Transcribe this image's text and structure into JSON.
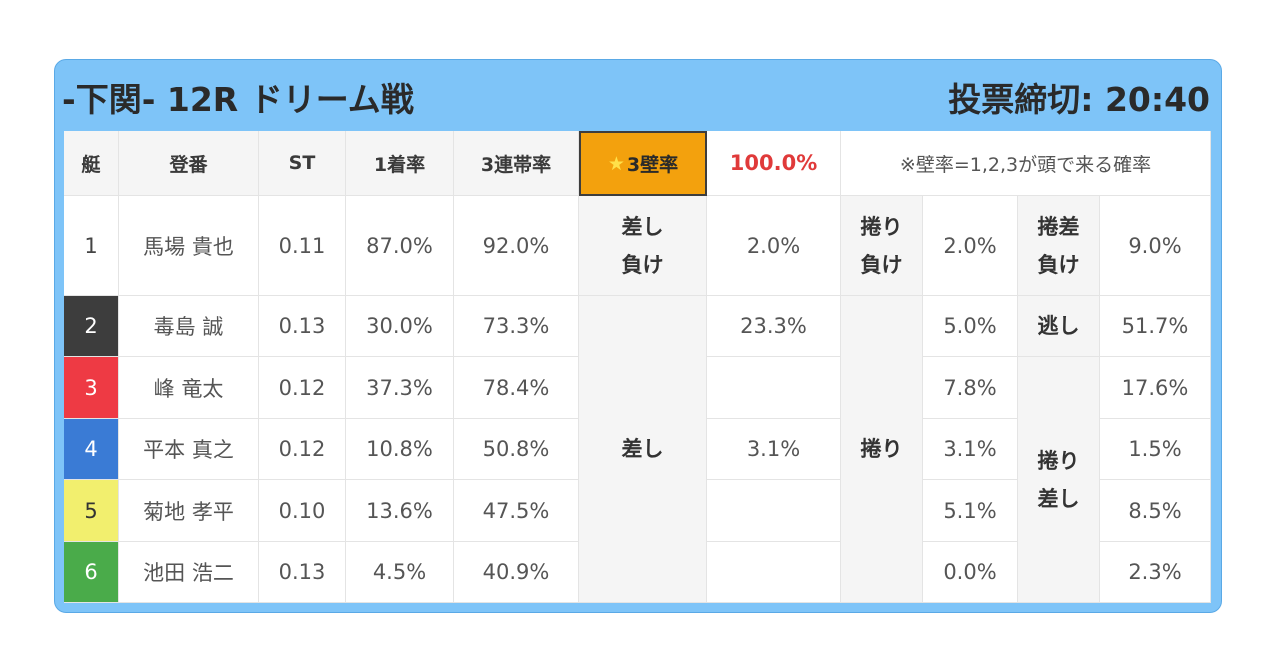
{
  "header": {
    "title": "-下関- 12R ドリーム戦",
    "deadline_label": "投票締切: ",
    "deadline_time": "20:40"
  },
  "columns": {
    "boat": "艇",
    "name": "登番",
    "st": "ST",
    "first_rate": "1着率",
    "trio_rate": "3連帯率",
    "star": "★",
    "wall_label": "3壁率",
    "wall_value": "100.0%",
    "note": "※壁率=1,2,3が頭で来る確率"
  },
  "colors": {
    "boat1": "#ffffff",
    "boat2": "#3d3d3d",
    "boat3": "#ee3a44",
    "boat4": "#3a7bd5",
    "boat5": "#f2ef6e",
    "boat6": "#4aab4a",
    "wall_highlight": "#f3a10d",
    "frame": "#7ec4f8"
  },
  "racers": [
    {
      "boat": "1",
      "name": "馬場 貴也",
      "st": "0.11",
      "first": "87.0%",
      "trio": "92.0%"
    },
    {
      "boat": "2",
      "name": "毒島 誠",
      "st": "0.13",
      "first": "30.0%",
      "trio": "73.3%"
    },
    {
      "boat": "3",
      "name": "峰 竜太",
      "st": "0.12",
      "first": "37.3%",
      "trio": "78.4%"
    },
    {
      "boat": "4",
      "name": "平本 真之",
      "st": "0.12",
      "first": "10.8%",
      "trio": "50.8%"
    },
    {
      "boat": "5",
      "name": "菊地 孝平",
      "st": "0.10",
      "first": "13.6%",
      "trio": "47.5%"
    },
    {
      "boat": "6",
      "name": "池田 浩二",
      "st": "0.13",
      "first": "4.5%",
      "trio": "40.9%"
    }
  ],
  "patterns": {
    "sashi_make": [
      "差し",
      "負け"
    ],
    "sashi_make_value": "2.0%",
    "makuri_make": [
      "捲り",
      "負け"
    ],
    "makuri_make_value": "2.0%",
    "makurizashi_make": [
      "捲差",
      "負け"
    ],
    "makurizashi_make_value": "9.0%",
    "sashi": "差し",
    "sashi_values": [
      "23.3%",
      "",
      "3.1%",
      "",
      ""
    ],
    "makuri": "捲り",
    "makuri_values": [
      "5.0%",
      "7.8%",
      "3.1%",
      "5.1%",
      "0.0%"
    ],
    "nige": "逃し",
    "nige_value": "51.7%",
    "makurizashi": [
      "捲り",
      "差し"
    ],
    "makurizashi_values": [
      "17.6%",
      "1.5%",
      "8.5%",
      "2.3%"
    ]
  }
}
